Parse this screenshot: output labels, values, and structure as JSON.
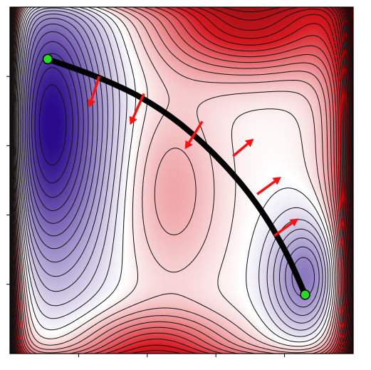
{
  "chart_data": {
    "type": "contour",
    "title": "",
    "xlabel": "",
    "ylabel": "",
    "xlim": [
      0,
      1
    ],
    "ylim": [
      0,
      1
    ],
    "grid": false,
    "legend": "none",
    "colormap": {
      "low": "#2a0a8a",
      "mid": "#ffffff",
      "high": "#d81820",
      "edge": "#3a0000"
    },
    "contour_color": "#111111",
    "contour_levels": 34,
    "path": {
      "color": "#000000",
      "points": [
        [
          0.11,
          0.85
        ],
        [
          0.25,
          0.8
        ],
        [
          0.38,
          0.74
        ],
        [
          0.5,
          0.66
        ],
        [
          0.62,
          0.55
        ],
        [
          0.72,
          0.43
        ],
        [
          0.8,
          0.3
        ],
        [
          0.86,
          0.17
        ]
      ]
    },
    "endpoints": {
      "color": "#22dd22",
      "points": [
        [
          0.11,
          0.85
        ],
        [
          0.86,
          0.17
        ]
      ]
    },
    "arrows": {
      "color": "#ff1010",
      "items": [
        {
          "x": 0.26,
          "y": 0.8,
          "dx": -0.03,
          "dy": -0.09
        },
        {
          "x": 0.39,
          "y": 0.75,
          "dx": -0.04,
          "dy": -0.09
        },
        {
          "x": 0.56,
          "y": 0.67,
          "dx": -0.05,
          "dy": -0.08
        },
        {
          "x": 0.65,
          "y": 0.57,
          "dx": 0.06,
          "dy": 0.05
        },
        {
          "x": 0.72,
          "y": 0.46,
          "dx": 0.07,
          "dy": 0.05
        },
        {
          "x": 0.77,
          "y": 0.34,
          "dx": 0.07,
          "dy": 0.05
        }
      ]
    }
  }
}
